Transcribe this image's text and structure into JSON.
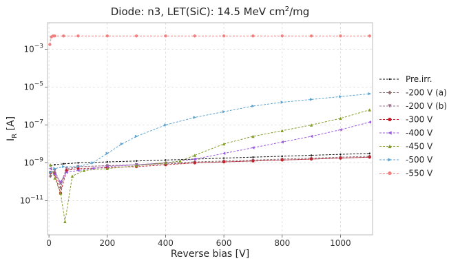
{
  "chart_data": {
    "type": "line",
    "title": {
      "prefix": "Diode: n3, LET(SiC): 14.5 MeV cm",
      "sup": "2",
      "suffix": "/mg"
    },
    "xlabel": "Reverse bias [V]",
    "ylabel": {
      "main": "I",
      "sub": "R",
      "unit": " [A]"
    },
    "xlim": [
      -5,
      1110
    ],
    "ylim_log10": [
      -12.8,
      -1.6
    ],
    "y_scale": "log",
    "grid": true,
    "legend_position": "right",
    "x_ticks": [
      {
        "value": 0,
        "label": "0"
      },
      {
        "value": 200,
        "label": "200"
      },
      {
        "value": 400,
        "label": "400"
      },
      {
        "value": 600,
        "label": "600"
      },
      {
        "value": 800,
        "label": "800"
      },
      {
        "value": 1000,
        "label": "1000"
      }
    ],
    "y_ticks": [
      {
        "exp": -3,
        "label_base": "10",
        "label_exp": "−3"
      },
      {
        "exp": -5,
        "label_base": "10",
        "label_exp": "−5"
      },
      {
        "exp": -7,
        "label_base": "10",
        "label_exp": "−7"
      },
      {
        "exp": -9,
        "label_base": "10",
        "label_exp": "−9"
      },
      {
        "exp": -11,
        "label_base": "10",
        "label_exp": "−11"
      }
    ],
    "series": [
      {
        "name": "Pre.irr.",
        "color": "#111111",
        "marker": "point",
        "x": [
          5,
          20,
          50,
          100,
          200,
          300,
          400,
          500,
          600,
          700,
          800,
          900,
          1000,
          1100
        ],
        "log10_y": [
          -9.15,
          -9.1,
          -9.05,
          -9.0,
          -8.95,
          -8.9,
          -8.85,
          -8.8,
          -8.75,
          -8.7,
          -8.65,
          -8.6,
          -8.55,
          -8.5
        ]
      },
      {
        "name": "-200 V (a)",
        "color": "#8c6d6d",
        "marker": "diamond",
        "x": [
          5,
          20,
          40,
          60,
          100,
          200,
          300,
          400,
          500,
          600,
          700,
          800,
          900,
          1000,
          1100
        ],
        "log10_y": [
          -9.7,
          -9.5,
          -10.3,
          -9.4,
          -9.2,
          -9.15,
          -9.1,
          -9.0,
          -8.95,
          -8.9,
          -8.85,
          -8.8,
          -8.75,
          -8.7,
          -8.65
        ]
      },
      {
        "name": "-200 V (b)",
        "color": "#9b6f8c",
        "marker": "triangle-down",
        "x": [
          5,
          20,
          40,
          60,
          100,
          200,
          300,
          400,
          500,
          600,
          700,
          800,
          900,
          1000,
          1100
        ],
        "log10_y": [
          -9.6,
          -9.4,
          -10.1,
          -9.3,
          -9.2,
          -9.15,
          -9.1,
          -9.05,
          -9.0,
          -8.95,
          -8.9,
          -8.85,
          -8.8,
          -8.75,
          -8.7
        ]
      },
      {
        "name": "-300 V",
        "color": "#c0202a",
        "marker": "circle",
        "x": [
          5,
          20,
          40,
          60,
          100,
          200,
          300,
          400,
          500,
          600,
          700,
          800,
          900,
          1000,
          1100
        ],
        "log10_y": [
          -9.5,
          -9.6,
          -10.6,
          -9.4,
          -9.3,
          -9.25,
          -9.2,
          -9.1,
          -9.0,
          -8.95,
          -8.9,
          -8.85,
          -8.8,
          -8.75,
          -8.7
        ]
      },
      {
        "name": "-400 V",
        "color": "#9b59e0",
        "marker": "triangle-left",
        "x": [
          5,
          20,
          40,
          60,
          100,
          150,
          200,
          300,
          400,
          500,
          600,
          700,
          800,
          900,
          1000,
          1100
        ],
        "log10_y": [
          -9.3,
          -9.6,
          -10.0,
          -9.5,
          -9.4,
          -9.3,
          -9.2,
          -9.1,
          -9.0,
          -8.8,
          -8.5,
          -8.2,
          -7.9,
          -7.6,
          -7.25,
          -6.85
        ]
      },
      {
        "name": "-450 V",
        "color": "#7f9a25",
        "marker": "triangle-up",
        "x": [
          5,
          20,
          40,
          55,
          80,
          120,
          200,
          300,
          400,
          450,
          500,
          600,
          700,
          800,
          900,
          1000,
          1100
        ],
        "log10_y": [
          -9.1,
          -9.8,
          -10.6,
          -12.1,
          -9.7,
          -9.4,
          -9.3,
          -9.15,
          -9.0,
          -8.9,
          -8.6,
          -8.0,
          -7.6,
          -7.3,
          -7.0,
          -6.65,
          -6.2
        ]
      },
      {
        "name": "-500 V",
        "color": "#5aa3d0",
        "marker": "triangle-right",
        "x": [
          5,
          20,
          50,
          100,
          150,
          200,
          250,
          300,
          400,
          500,
          600,
          700,
          800,
          900,
          1000,
          1100
        ],
        "log10_y": [
          -9.5,
          -9.3,
          -9.2,
          -9.2,
          -9.0,
          -8.5,
          -8.0,
          -7.6,
          -7.0,
          -6.6,
          -6.3,
          -6.0,
          -5.8,
          -5.65,
          -5.5,
          -5.35
        ]
      },
      {
        "name": "-550 V",
        "color": "#f28080",
        "marker": "circle",
        "x": [
          3,
          8,
          14,
          20,
          50,
          100,
          200,
          300,
          400,
          500,
          600,
          700,
          800,
          900,
          1000,
          1100
        ],
        "log10_y": [
          -2.75,
          -2.35,
          -2.3,
          -2.3,
          -2.3,
          -2.3,
          -2.3,
          -2.3,
          -2.3,
          -2.3,
          -2.3,
          -2.3,
          -2.3,
          -2.3,
          -2.3,
          -2.3
        ]
      }
    ]
  }
}
